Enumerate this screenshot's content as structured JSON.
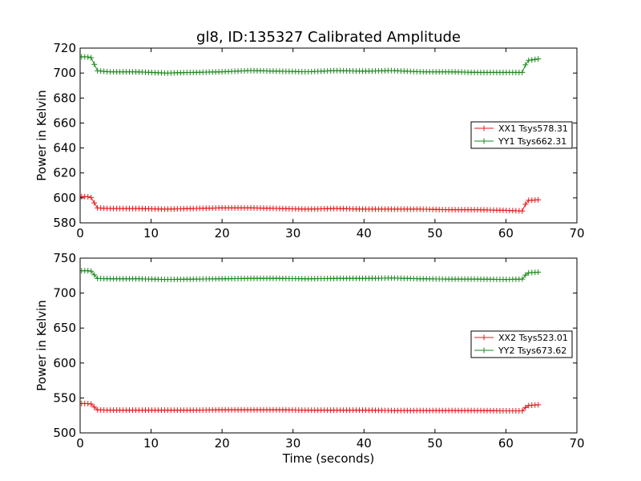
{
  "title": "gl8, ID:135327 Calibrated Amplitude",
  "xlabel": "Time (seconds)",
  "chart_data": [
    {
      "type": "line",
      "xlim": [
        0,
        70
      ],
      "ylim": [
        580,
        720
      ],
      "xticks": [
        0,
        10,
        20,
        30,
        40,
        50,
        60,
        70
      ],
      "yticks": [
        580,
        600,
        620,
        640,
        660,
        680,
        700,
        720
      ],
      "ylabel": "Power in Kelvin",
      "legend_placement": "center-right",
      "series": [
        {
          "name": "XX1 Tsys578.31",
          "color": "#e31a1c",
          "marker": "plus",
          "points": [
            [
              0.2,
              601
            ],
            [
              1,
              601
            ],
            [
              1.8,
              600
            ],
            [
              2.2,
              592
            ],
            [
              4,
              591.5
            ],
            [
              8,
              591.5
            ],
            [
              12,
              591
            ],
            [
              16,
              591.5
            ],
            [
              20,
              592
            ],
            [
              24,
              592
            ],
            [
              28,
              591.5
            ],
            [
              32,
              591
            ],
            [
              36,
              591.5
            ],
            [
              40,
              591
            ],
            [
              44,
              591
            ],
            [
              48,
              591
            ],
            [
              52,
              590.5
            ],
            [
              56,
              590.5
            ],
            [
              60,
              590
            ],
            [
              62.3,
              589.5
            ],
            [
              63,
              598
            ],
            [
              64.8,
              598.5
            ]
          ]
        },
        {
          "name": "YY1 Tsys662.31",
          "color": "#1a8a1a",
          "marker": "plus",
          "points": [
            [
              0.2,
              713
            ],
            [
              1,
              713
            ],
            [
              1.8,
              712
            ],
            [
              2.2,
              702
            ],
            [
              4,
              701
            ],
            [
              8,
              701
            ],
            [
              12,
              700
            ],
            [
              16,
              700.5
            ],
            [
              20,
              701
            ],
            [
              24,
              702
            ],
            [
              28,
              701.5
            ],
            [
              32,
              701
            ],
            [
              36,
              702
            ],
            [
              40,
              701.5
            ],
            [
              44,
              702
            ],
            [
              48,
              701
            ],
            [
              52,
              701
            ],
            [
              56,
              700.5
            ],
            [
              60,
              700.5
            ],
            [
              62.3,
              700.5
            ],
            [
              63,
              710
            ],
            [
              64.8,
              711.5
            ]
          ]
        }
      ]
    },
    {
      "type": "line",
      "xlim": [
        0,
        70
      ],
      "ylim": [
        500,
        750
      ],
      "xticks": [
        0,
        10,
        20,
        30,
        40,
        50,
        60,
        70
      ],
      "yticks": [
        500,
        550,
        600,
        650,
        700,
        750
      ],
      "ylabel": "Power in Kelvin",
      "xlabel": "Time (seconds)",
      "legend_placement": "center-right",
      "series": [
        {
          "name": "XX2 Tsys523.01",
          "color": "#e31a1c",
          "marker": "plus",
          "points": [
            [
              0.2,
              542
            ],
            [
              1,
              542
            ],
            [
              1.8,
              541
            ],
            [
              2.2,
              533
            ],
            [
              4,
              532.5
            ],
            [
              8,
              532.5
            ],
            [
              12,
              532.5
            ],
            [
              16,
              532.5
            ],
            [
              20,
              533
            ],
            [
              24,
              533
            ],
            [
              28,
              533
            ],
            [
              32,
              532.5
            ],
            [
              36,
              532.5
            ],
            [
              40,
              532.5
            ],
            [
              44,
              532
            ],
            [
              48,
              532
            ],
            [
              52,
              532
            ],
            [
              56,
              532
            ],
            [
              60,
              531.5
            ],
            [
              62.3,
              531.5
            ],
            [
              63,
              539
            ],
            [
              64.8,
              540.5
            ]
          ]
        },
        {
          "name": "YY2 Tsys673.62",
          "color": "#1a8a1a",
          "marker": "plus",
          "points": [
            [
              0.2,
              732
            ],
            [
              1,
              732
            ],
            [
              1.8,
              731
            ],
            [
              2.2,
              721
            ],
            [
              4,
              720.5
            ],
            [
              8,
              720.5
            ],
            [
              12,
              719.5
            ],
            [
              16,
              720
            ],
            [
              20,
              720.5
            ],
            [
              24,
              721
            ],
            [
              28,
              721
            ],
            [
              32,
              720.5
            ],
            [
              36,
              721
            ],
            [
              40,
              721
            ],
            [
              44,
              721.5
            ],
            [
              48,
              720.5
            ],
            [
              52,
              720
            ],
            [
              56,
              720
            ],
            [
              60,
              719.5
            ],
            [
              62.3,
              720
            ],
            [
              63,
              729
            ],
            [
              64.8,
              730
            ]
          ]
        }
      ]
    }
  ]
}
